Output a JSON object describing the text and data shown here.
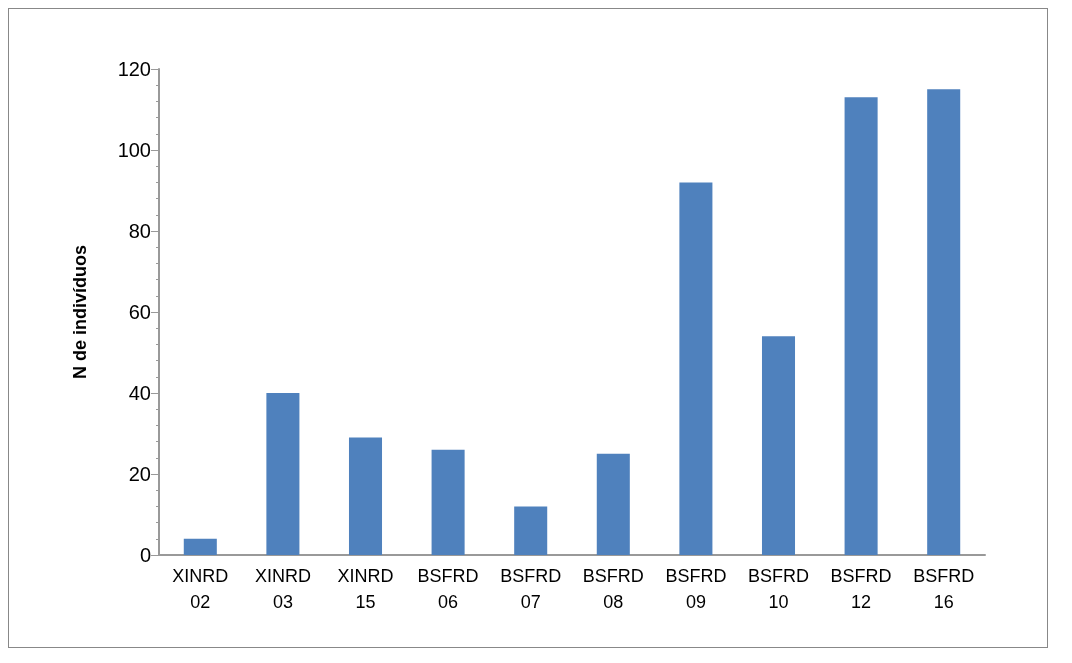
{
  "chart_data": {
    "type": "bar",
    "ylabel": "N de indivíduos",
    "categories": [
      "XINRD\n02",
      "XINRD\n03",
      "XINRD\n15",
      "BSFRD\n06",
      "BSFRD\n07",
      "BSFRD\n08",
      "BSFRD\n09",
      "BSFRD\n10",
      "BSFRD\n12",
      "BSFRD\n16"
    ],
    "values": [
      4,
      40,
      29,
      26,
      12,
      25,
      92,
      54,
      113,
      115
    ],
    "color": "#4f81bd",
    "ylim": [
      0,
      120
    ],
    "yticks": [
      0,
      20,
      40,
      60,
      80,
      100,
      120
    ],
    "grid": false
  }
}
